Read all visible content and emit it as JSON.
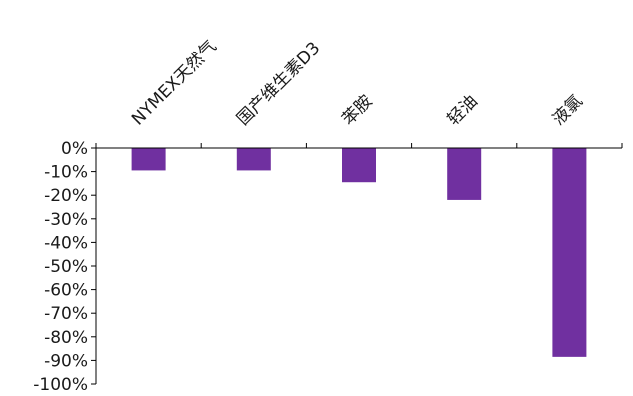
{
  "chart_data": {
    "type": "bar",
    "categories": [
      "NYMEX天然气",
      "国产维生素D3",
      "苯胺",
      "轻油",
      "液氯"
    ],
    "values": [
      -9.5,
      -9.5,
      -14.5,
      -22.0,
      -88.5
    ],
    "y_ticks": [
      "0%",
      "-10%",
      "-20%",
      "-30%",
      "-40%",
      "-50%",
      "-60%",
      "-70%",
      "-80%",
      "-90%",
      "-100%"
    ],
    "ylim": [
      -100,
      0
    ],
    "unit": "%",
    "bar_color": "#7030a0",
    "axis_color": "#000000",
    "grid": false,
    "legend": "none",
    "category_label_rotation": -45,
    "category_label_position": "top"
  }
}
